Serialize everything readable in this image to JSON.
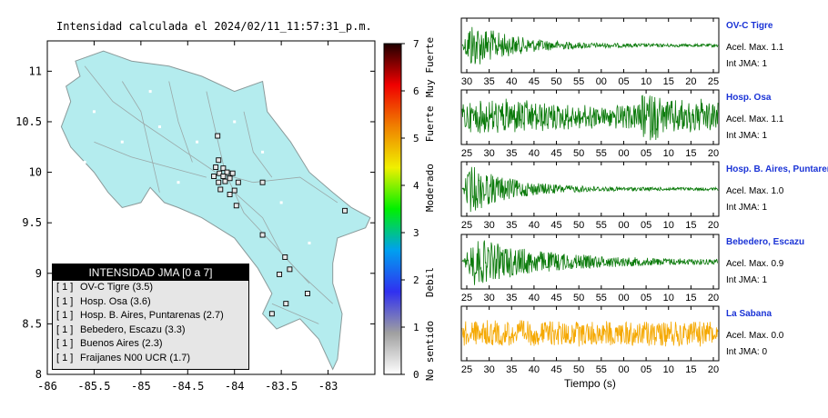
{
  "map": {
    "title": "Intensidad calculada el 2024/02/11_11:57:31_p.m.",
    "x_ticks": [
      "-86",
      "-85.5",
      "-85",
      "-84.5",
      "-84",
      "-83.5",
      "-83"
    ],
    "y_ticks": [
      "11",
      "10.5",
      "10",
      "9.5",
      "9",
      "8.5",
      "8"
    ],
    "xlim": [
      -86,
      -82.5
    ],
    "ylim": [
      8,
      11.3
    ],
    "land_color": "#b4ecee",
    "station_markers": [
      {
        "lon": -84.18,
        "lat": 10.36
      },
      {
        "lon": -84.17,
        "lat": 10.12
      },
      {
        "lon": -84.2,
        "lat": 10.05
      },
      {
        "lon": -84.12,
        "lat": 10.04
      },
      {
        "lon": -84.08,
        "lat": 10.0
      },
      {
        "lon": -84.02,
        "lat": 9.99
      },
      {
        "lon": -84.16,
        "lat": 9.99
      },
      {
        "lon": -84.22,
        "lat": 9.96
      },
      {
        "lon": -84.12,
        "lat": 9.96
      },
      {
        "lon": -84.05,
        "lat": 9.94
      },
      {
        "lon": -84.1,
        "lat": 9.91
      },
      {
        "lon": -83.96,
        "lat": 9.9
      },
      {
        "lon": -84.17,
        "lat": 9.9
      },
      {
        "lon": -83.7,
        "lat": 9.9
      },
      {
        "lon": -84.05,
        "lat": 9.78
      },
      {
        "lon": -84.0,
        "lat": 9.82
      },
      {
        "lon": -84.15,
        "lat": 9.83
      },
      {
        "lon": -83.98,
        "lat": 9.67
      },
      {
        "lon": -83.7,
        "lat": 9.38
      },
      {
        "lon": -83.46,
        "lat": 9.16
      },
      {
        "lon": -83.41,
        "lat": 9.04
      },
      {
        "lon": -83.52,
        "lat": 8.99
      },
      {
        "lon": -82.82,
        "lat": 9.62
      },
      {
        "lon": -83.22,
        "lat": 8.8
      },
      {
        "lon": -83.45,
        "lat": 8.7
      },
      {
        "lon": -83.6,
        "lat": 8.6
      }
    ]
  },
  "legend": {
    "header": "INTENSIDAD JMA [0 a 7]",
    "items": [
      {
        "code": "[ 1 ]",
        "label": "OV-C Tigre (3.5)"
      },
      {
        "code": "[ 1 ]",
        "label": "Hosp. Osa (3.6)"
      },
      {
        "code": "[ 1 ]",
        "label": "Hosp. B. Aires, Puntarenas (2.7)"
      },
      {
        "code": "[ 1 ]",
        "label": "Bebedero, Escazu (3.3)"
      },
      {
        "code": "[ 1 ]",
        "label": "Buenos Aires (2.3)"
      },
      {
        "code": "[ 1 ]",
        "label": "Fraijanes N00 UCR (1.7)"
      }
    ]
  },
  "colorbar": {
    "ticks": [
      "0",
      "1",
      "2",
      "3",
      "4",
      "5",
      "6",
      "7"
    ],
    "labels": [
      {
        "text": "No sentido",
        "level": 0.5
      },
      {
        "text": "Debil",
        "level": 1.95
      },
      {
        "text": "Moderado",
        "level": 3.95
      },
      {
        "text": "Fuerte",
        "level": 5.3
      },
      {
        "text": "Muy Fuerte",
        "level": 6.5
      }
    ],
    "colors": [
      "#ffffff",
      "#a0a0a0",
      "#3030f0",
      "#00a0f0",
      "#00f000",
      "#f0f000",
      "#f08000",
      "#f00000",
      "#200000"
    ]
  },
  "traces": [
    {
      "name": "OV-C Tigre",
      "acel": "Acel. Max. 1.1",
      "jma": "Int JMA: 1",
      "ticks": [
        "30",
        "35",
        "40",
        "45",
        "50",
        "55",
        "00",
        "05",
        "10",
        "15",
        "20",
        "25"
      ],
      "color": "#0a7a0a",
      "envelope": "decay"
    },
    {
      "name": "Hosp. Osa",
      "acel": "Acel. Max. 1.1",
      "jma": "Int JMA: 1",
      "ticks": [
        "25",
        "30",
        "35",
        "40",
        "45",
        "50",
        "55",
        "00",
        "05",
        "10",
        "15",
        "20"
      ],
      "color": "#0a7a0a",
      "envelope": "sustained"
    },
    {
      "name": "Hosp. B. Aires, Puntarenas",
      "acel": "Acel. Max. 1.0",
      "jma": "Int JMA: 1",
      "ticks": [
        "25",
        "30",
        "35",
        "40",
        "45",
        "50",
        "55",
        "00",
        "05",
        "10",
        "15",
        "20"
      ],
      "color": "#0a7a0a",
      "envelope": "decay"
    },
    {
      "name": "Bebedero, Escazu",
      "acel": "Acel. Max. 0.9",
      "jma": "Int JMA: 1",
      "ticks": [
        "25",
        "30",
        "35",
        "40",
        "45",
        "50",
        "55",
        "00",
        "05",
        "10",
        "15",
        "20"
      ],
      "color": "#0a7a0a",
      "envelope": "decay_slow"
    },
    {
      "name": "La Sabana",
      "acel": "Acel. Max. 0.0",
      "jma": "Int JMA: 0",
      "ticks": [
        "25",
        "30",
        "35",
        "40",
        "45",
        "50",
        "55",
        "00",
        "05",
        "10",
        "15",
        "20"
      ],
      "color": "#f5a800",
      "envelope": "uniform"
    }
  ],
  "time_label": "Tiempo (s)"
}
